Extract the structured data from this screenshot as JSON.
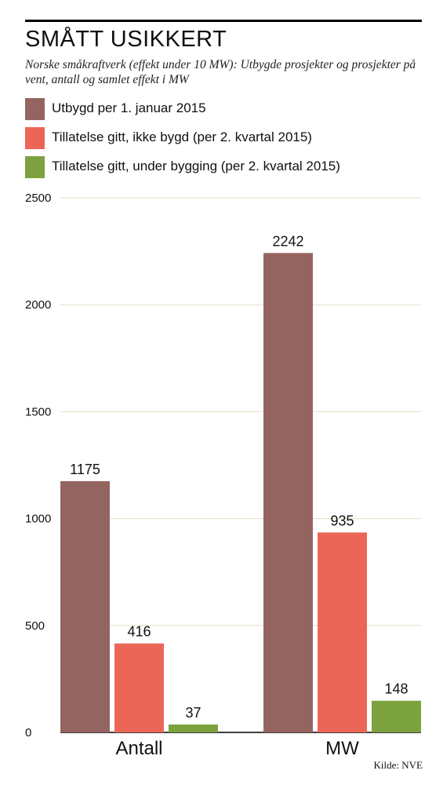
{
  "header": {
    "title": "SMÅTT USIKKERT",
    "subtitle": "Norske småkraftverk (effekt under 10 MW): Utbygde prosjekter og prosjekter på vent, antall og samlet effekt i MW"
  },
  "legend": [
    {
      "label": "Utbygd per 1. januar 2015",
      "color": "#946560"
    },
    {
      "label": "Tillatelse gitt, ikke bygd (per 2. kvartal 2015)",
      "color": "#ec6658"
    },
    {
      "label": "Tillatelse gitt, under bygging (per 2. kvartal 2015)",
      "color": "#7ba23f"
    }
  ],
  "source": "Kilde: NVE",
  "chart_data": {
    "type": "bar",
    "categories": [
      "Antall",
      "MW"
    ],
    "series": [
      {
        "name": "Utbygd per 1. januar 2015",
        "values": [
          1175,
          2242
        ],
        "color": "#946560"
      },
      {
        "name": "Tillatelse gitt, ikke bygd (per 2. kvartal 2015)",
        "values": [
          416,
          935
        ],
        "color": "#ec6658"
      },
      {
        "name": "Tillatelse gitt, under bygging (per 2. kvartal 2015)",
        "values": [
          37,
          148
        ],
        "color": "#7ba23f"
      }
    ],
    "yticks": [
      0,
      500,
      1000,
      1500,
      2000,
      2500
    ],
    "ylim": [
      0,
      2500
    ],
    "grid": true,
    "legend_position": "top"
  }
}
